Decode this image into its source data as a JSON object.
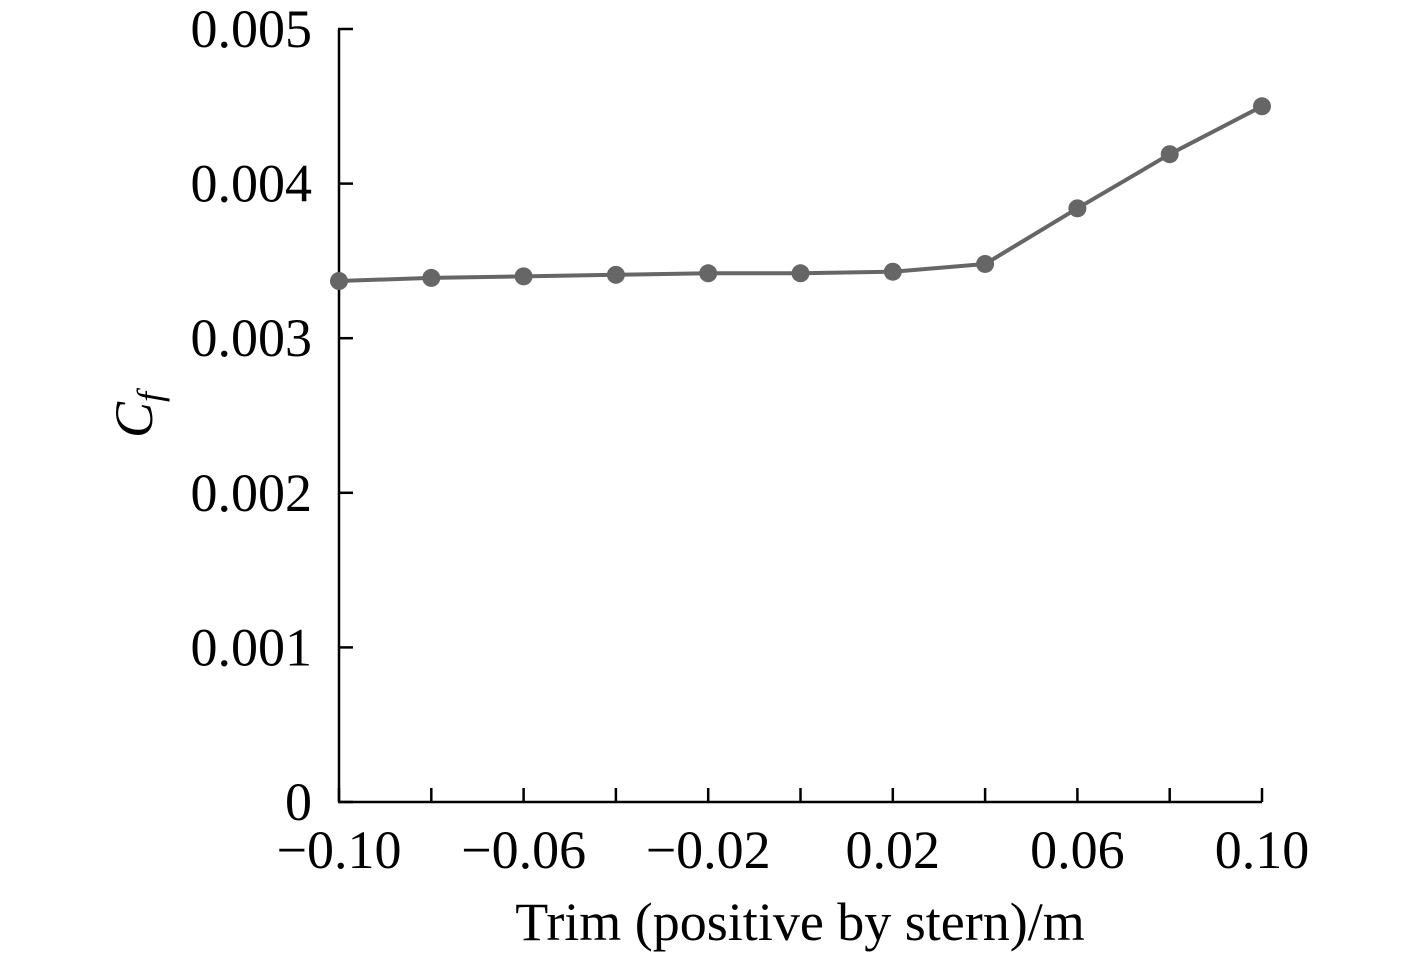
{
  "chart_data": {
    "type": "line",
    "title": "",
    "xlabel": "Trim (positive by stern)/m",
    "ylabel_main": "C",
    "ylabel_sub": "f",
    "xlim": [
      -0.1,
      0.1
    ],
    "ylim": [
      0,
      0.005
    ],
    "x_ticks_all": [
      -0.1,
      -0.08,
      -0.06,
      -0.04,
      -0.02,
      0.0,
      0.02,
      0.04,
      0.06,
      0.08,
      0.1
    ],
    "x_tick_labels": [
      "−0.10",
      "−0.06",
      "−0.02",
      "0.02",
      "0.06",
      "0.10"
    ],
    "x_tick_label_values": [
      -0.1,
      -0.06,
      -0.02,
      0.02,
      0.06,
      0.1
    ],
    "y_ticks": [
      0,
      0.001,
      0.002,
      0.003,
      0.004,
      0.005
    ],
    "y_tick_labels": [
      "0",
      "0.001",
      "0.002",
      "0.003",
      "0.004",
      "0.005"
    ],
    "grid": false,
    "series": [
      {
        "color": "#666666",
        "x": [
          -0.1,
          -0.08,
          -0.06,
          -0.04,
          -0.02,
          0.0,
          0.02,
          0.04,
          0.06,
          0.08,
          0.1
        ],
        "values": [
          0.00337,
          0.00339,
          0.0034,
          0.00341,
          0.00342,
          0.00342,
          0.00343,
          0.00348,
          0.00384,
          0.00419,
          0.0045
        ]
      }
    ]
  }
}
